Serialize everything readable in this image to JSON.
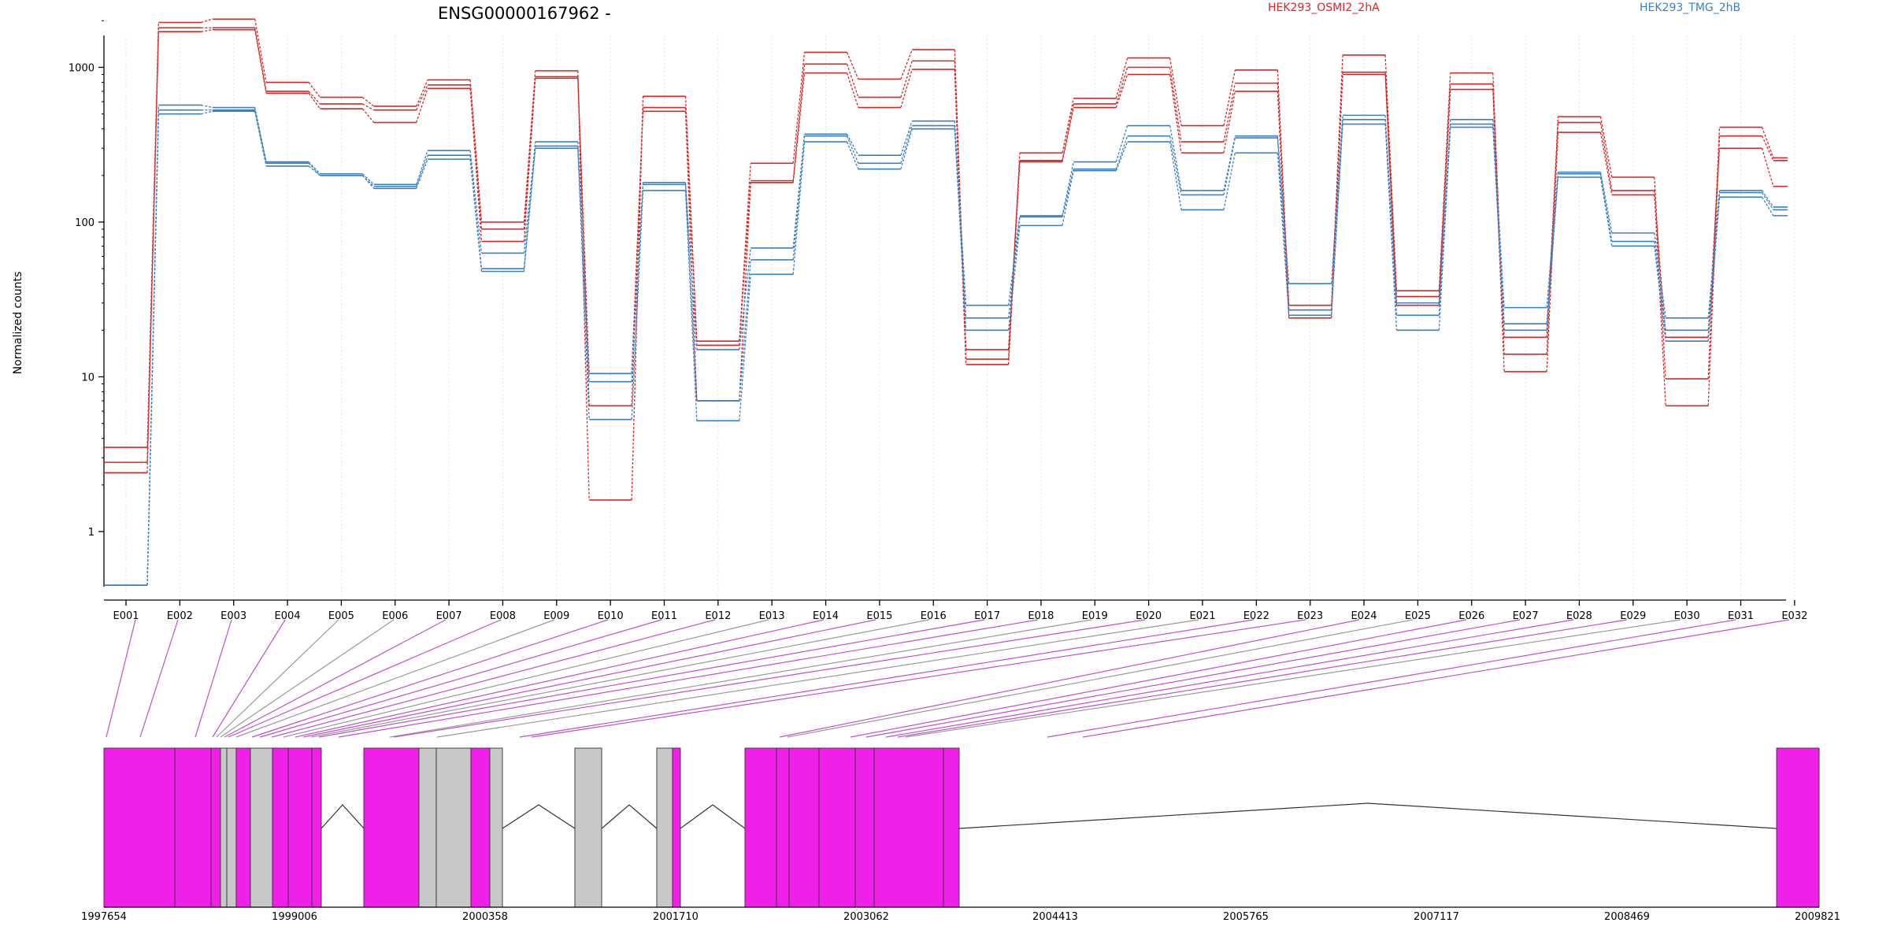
{
  "chart_data": {
    "type": "line",
    "title": "ENSG00000167962 -",
    "ylabel": "Normalized counts",
    "y_scale": "log",
    "ylim": [
      0.5,
      3000
    ],
    "y_ticks": [
      1,
      10,
      100,
      1000
    ],
    "y_tick_labels": [
      "1",
      "10",
      "100",
      "1000"
    ],
    "grid": "vertical dotted lines at each exon",
    "legend_placement": "top-right",
    "categories": [
      "E001",
      "E002",
      "E003",
      "E004",
      "E005",
      "E006",
      "E007",
      "E008",
      "E009",
      "E010",
      "E011",
      "E012",
      "E013",
      "E014",
      "E015",
      "E016",
      "E017",
      "E018",
      "E019",
      "E020",
      "E021",
      "E022",
      "E023",
      "E024",
      "E025",
      "E026",
      "E027",
      "E028",
      "E029",
      "E030",
      "E031",
      "E032"
    ],
    "groups": [
      {
        "name": "HEK293_OSMI2_2hA",
        "color": "#d62728",
        "replicates": [
          {
            "values": [
              3.5,
              1950,
              2050,
              800,
              640,
              560,
              830,
              100,
              950,
              1.6,
              650,
              17,
              240,
              1250,
              840,
              1300,
              13,
              280,
              630,
              1150,
              420,
              960,
              29,
              1200,
              36,
              920,
              14,
              480,
              195,
              9.7,
              410,
              260
            ]
          },
          {
            "values": [
              2.8,
              1800,
              1800,
              700,
              580,
              530,
              770,
              90,
              870,
              6.5,
              550,
              16,
              185,
              1050,
              640,
              1100,
              15,
              250,
              580,
              1000,
              330,
              790,
              27,
              930,
              33,
              780,
              18,
              440,
              160,
              6.5,
              360,
              250
            ]
          },
          {
            "values": [
              2.4,
              1700,
              1750,
              680,
              540,
              440,
              730,
              75,
              850,
              10.5,
              520,
              7.0,
              180,
              920,
              550,
              970,
              12,
              245,
              550,
              900,
              280,
              700,
              24,
              900,
              29,
              720,
              10.8,
              380,
              150,
              18,
              300,
              170
            ]
          }
        ]
      },
      {
        "name": "HEK293_TMG_2hB",
        "color": "#3a80c0",
        "replicates": [
          {
            "values": [
              0.45,
              570,
              550,
              245,
              205,
              175,
              290,
              63,
              330,
              10.5,
              180,
              15,
              68,
              370,
              270,
              450,
              29,
              110,
              245,
              420,
              160,
              360,
              40,
              490,
              30,
              460,
              28,
              210,
              85,
              24,
              160,
              125
            ]
          },
          {
            "values": [
              0.45,
              530,
              530,
              240,
              200,
              170,
              270,
              50,
              310,
              9.3,
              175,
              7.0,
              57,
              360,
              240,
              420,
              24,
              108,
              220,
              360,
              150,
              350,
              27,
              460,
              25,
              430,
              22,
              205,
              75,
              20,
              155,
              120
            ]
          },
          {
            "values": [
              0.45,
              500,
              520,
              230,
              200,
              165,
              255,
              48,
              300,
              5.3,
              160,
              5.2,
              46,
              330,
              220,
              400,
              20,
              95,
              215,
              330,
              120,
              280,
              25,
              430,
              20,
              410,
              20,
              195,
              70,
              17,
              145,
              110
            ]
          }
        ]
      }
    ],
    "gene_model": {
      "coordinates": [
        "1997654",
        "1999006",
        "2000358",
        "2001710",
        "2003062",
        "2004413",
        "2005765",
        "2007117",
        "2008469",
        "2009821"
      ],
      "segment_colors": {
        "tested": "#f020e8",
        "untested": "#c8c8c8"
      }
    }
  }
}
